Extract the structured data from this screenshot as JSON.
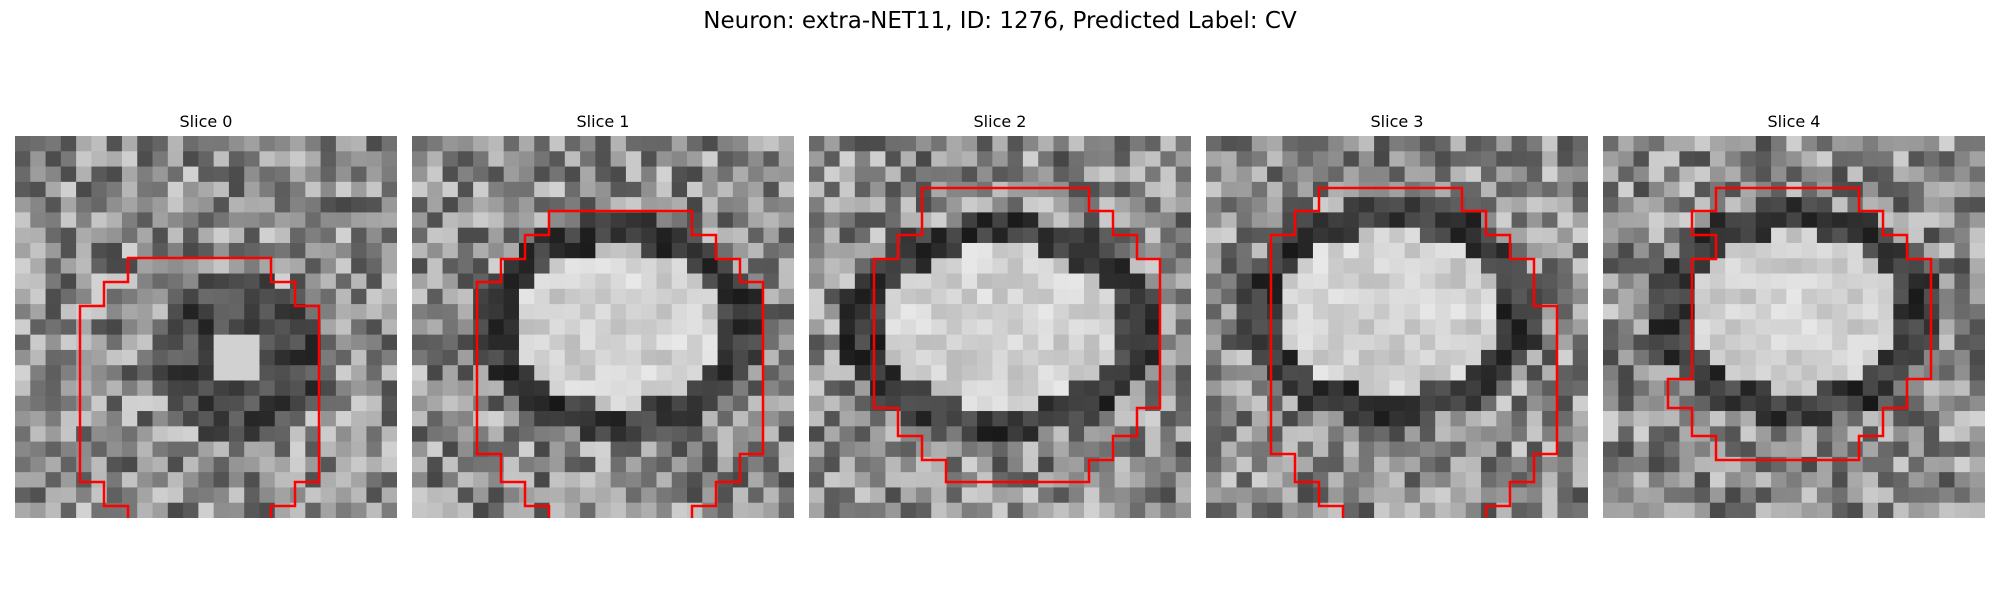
{
  "figure": {
    "title": "Neuron: extra-NET11, ID: 1276, Predicted Label: CV"
  },
  "colors": {
    "background": "#ffffff",
    "contour": "#ff0000",
    "colormap": "grayscale"
  },
  "slices": [
    {
      "label": "Slice 0",
      "seed": 11,
      "pattern": "mottled"
    },
    {
      "label": "Slice 1",
      "seed": 23,
      "pattern": "ring"
    },
    {
      "label": "Slice 2",
      "seed": 37,
      "pattern": "ring"
    },
    {
      "label": "Slice 3",
      "seed": 53,
      "pattern": "ring"
    },
    {
      "label": "Slice 4",
      "seed": 71,
      "pattern": "ring"
    }
  ]
}
